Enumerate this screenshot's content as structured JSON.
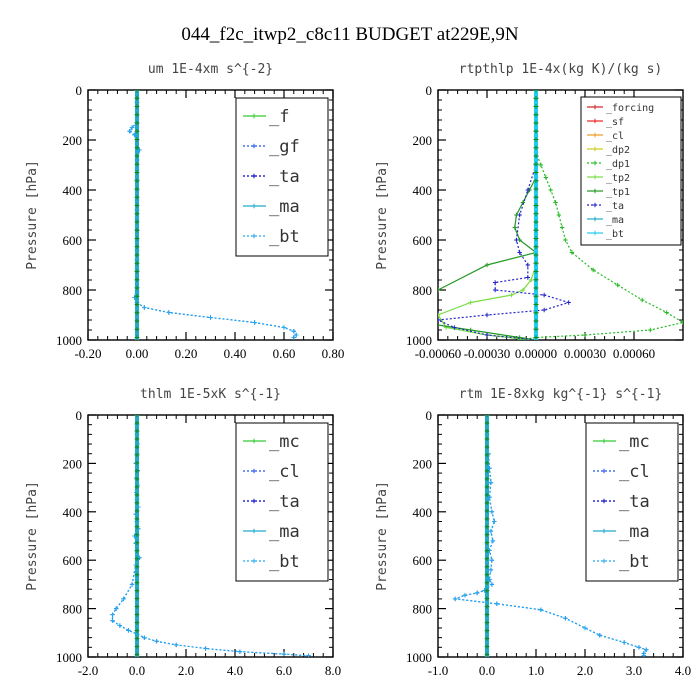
{
  "figure_title": "044_f2c_itwp2_c8c11  BUDGET at229E,9N",
  "chart_data": [
    {
      "type": "line",
      "title": "um   1E-4xm s^{-2}",
      "ylabel": "Pressure [hPa]",
      "xlim": [
        -0.2,
        0.8
      ],
      "ylim": [
        0,
        1000
      ],
      "y_inverted": true,
      "xticks": [
        -0.2,
        0.0,
        0.2,
        0.4,
        0.6,
        0.8
      ],
      "xtick_labels": [
        "-0.20",
        "0.00",
        "0.20",
        "0.40",
        "0.60",
        "0.80"
      ],
      "yticks": [
        0,
        200,
        400,
        600,
        800,
        1000
      ],
      "ytick_labels": [
        "0",
        "200",
        "400",
        "600",
        "800",
        "1000"
      ],
      "legend": {
        "position": "top-right",
        "style": "large",
        "entries": [
          "_f",
          "_gf",
          "_ta",
          "_ma",
          "_bt"
        ]
      },
      "series": [
        {
          "name": "_f",
          "color": "#33cc33",
          "dash": "",
          "x": [
            0,
            0
          ],
          "y": [
            0,
            1000
          ]
        },
        {
          "name": "_gf",
          "color": "#2255ee",
          "dash": "2,2",
          "x": [
            0.0,
            0.0,
            0.0,
            0.0,
            -0.02,
            -0.03,
            -0.01,
            0.0,
            0.01,
            0.0,
            0.0,
            0.0,
            0.0,
            0.0,
            0.0,
            0.0,
            0.0,
            0.0,
            0.0,
            0.0,
            0.0,
            0.0,
            0.0,
            0.0,
            0.0,
            -0.01,
            0.0,
            0.03,
            0.13,
            0.3,
            0.48,
            0.6,
            0.64,
            0.65,
            0.64
          ],
          "y": [
            0,
            50,
            100,
            130,
            150,
            165,
            180,
            200,
            240,
            280,
            320,
            360,
            400,
            440,
            480,
            520,
            560,
            600,
            640,
            680,
            720,
            760,
            790,
            805,
            815,
            830,
            850,
            870,
            890,
            910,
            930,
            950,
            965,
            980,
            990
          ]
        },
        {
          "name": "_ta",
          "color": "#0000cc",
          "dash": "2,2",
          "x": [
            0.0,
            0.0,
            0.0,
            0.0,
            0.0
          ],
          "y": [
            0,
            250,
            500,
            750,
            1000
          ]
        },
        {
          "name": "_ma",
          "color": "#22aacc",
          "dash": "",
          "x": [
            0.0,
            0.0
          ],
          "y": [
            0,
            1000
          ]
        },
        {
          "name": "_bt",
          "color": "#22aaee",
          "dash": "2,2",
          "x": [
            0.0,
            0.0,
            0.0,
            0.0,
            -0.02,
            -0.03,
            -0.01,
            0.0,
            0.01,
            0.0,
            0.0,
            0.0,
            0.0,
            0.0,
            0.0,
            0.0,
            0.0,
            0.0,
            0.0,
            0.0,
            0.0,
            0.0,
            0.0,
            0.0,
            0.0,
            -0.01,
            0.0,
            0.03,
            0.13,
            0.3,
            0.48,
            0.6,
            0.64,
            0.65,
            0.64
          ],
          "y": [
            0,
            50,
            100,
            130,
            150,
            165,
            180,
            200,
            240,
            280,
            320,
            360,
            400,
            440,
            480,
            520,
            560,
            600,
            640,
            680,
            720,
            760,
            790,
            805,
            815,
            830,
            850,
            870,
            890,
            910,
            930,
            950,
            965,
            980,
            990
          ]
        }
      ]
    },
    {
      "type": "line",
      "title": "rtpthlp   1E-4x(kg K)/(kg s)",
      "ylabel": "Pressure [hPa]",
      "xlim": [
        -0.0006,
        0.0009
      ],
      "ylim": [
        0,
        1000
      ],
      "y_inverted": true,
      "xticks": [
        -0.0006,
        -0.0003,
        0.0,
        0.0003,
        0.0006
      ],
      "xtick_labels": [
        "-0.00060",
        "-0.00030",
        "0.00000",
        "0.00030",
        "0.00060"
      ],
      "yticks": [
        0,
        200,
        400,
        600,
        800,
        1000
      ],
      "ytick_labels": [
        "0",
        "200",
        "400",
        "600",
        "800",
        "1000"
      ],
      "legend": {
        "position": "top-right",
        "style": "small",
        "entries": [
          "_forcing",
          "_sf",
          "_cl",
          "_dp2",
          "_dp1",
          "_tp2",
          "_tp1",
          "_ta",
          "_ma",
          "_bt"
        ]
      },
      "series": [
        {
          "name": "_forcing",
          "color": "#cc2222",
          "dash": "",
          "x": [
            0,
            0
          ],
          "y": [
            0,
            1000
          ]
        },
        {
          "name": "_sf",
          "color": "#ee2222",
          "dash": "",
          "x": [
            0,
            0
          ],
          "y": [
            0,
            1000
          ]
        },
        {
          "name": "_cl",
          "color": "#ee9922",
          "dash": "",
          "x": [
            0,
            0
          ],
          "y": [
            0,
            1000
          ]
        },
        {
          "name": "_dp2",
          "color": "#cccc22",
          "dash": "",
          "x": [
            0,
            0
          ],
          "y": [
            0,
            1000
          ]
        },
        {
          "name": "_dp1",
          "color": "#22bb22",
          "dash": "2,2",
          "x": [
            0.0,
            0.0,
            3e-05,
            6e-05,
            9e-05,
            0.00012,
            0.00014,
            0.00016,
            0.00018,
            0.00022,
            0.00035,
            0.0005,
            0.00065,
            0.0008,
            0.0009,
            0.0007,
            0.0003,
            0.0,
            -0.0001
          ],
          "y": [
            230,
            250,
            300,
            350,
            400,
            450,
            500,
            550,
            600,
            650,
            720,
            780,
            840,
            890,
            930,
            960,
            980,
            990,
            1000
          ]
        },
        {
          "name": "_tp2",
          "color": "#77dd44",
          "dash": "",
          "x": [
            0.0,
            -3e-05,
            -8e-05,
            -0.00015,
            -0.0004,
            -0.0006,
            -0.00055,
            -0.0003,
            -0.0001,
            0.0
          ],
          "y": [
            700,
            760,
            800,
            820,
            850,
            900,
            950,
            980,
            995,
            1000
          ]
        },
        {
          "name": "_tp1",
          "color": "#229922",
          "dash": "",
          "x": [
            0.0,
            0.0,
            -4e-05,
            -8e-05,
            -0.00012,
            -0.00013,
            -0.0001,
            0.0,
            -0.0003,
            -0.0006,
            -0.0008,
            -0.0007,
            -0.0004,
            -0.0001,
            0.0
          ],
          "y": [
            300,
            350,
            400,
            450,
            500,
            550,
            600,
            650,
            700,
            800,
            900,
            930,
            960,
            990,
            1000
          ]
        },
        {
          "name": "_ta",
          "color": "#2222cc",
          "dash": "2,2",
          "x": [
            0.0,
            -5e-05,
            -0.0001,
            -0.00012,
            -0.0001,
            -5e-05,
            -5e-05,
            -0.00025,
            -0.00025,
            5e-05,
            0.0002,
            5e-05,
            -0.0003,
            -0.0006,
            -0.0005,
            -0.0003,
            0.0
          ],
          "y": [
            300,
            400,
            500,
            600,
            650,
            700,
            750,
            770,
            800,
            820,
            850,
            880,
            900,
            920,
            950,
            980,
            1000
          ]
        },
        {
          "name": "_ma",
          "color": "#22aacc",
          "dash": "",
          "x": [
            0.0,
            0.0
          ],
          "y": [
            0,
            1000
          ]
        },
        {
          "name": "_bt",
          "color": "#22ccee",
          "dash": "",
          "x": [
            0.0,
            0.0
          ],
          "y": [
            0,
            1000
          ]
        }
      ]
    },
    {
      "type": "line",
      "title": "thlm   1E-5xK s^{-1}",
      "ylabel": "Pressure [hPa]",
      "xlim": [
        -2.0,
        8.0
      ],
      "ylim": [
        0,
        1000
      ],
      "y_inverted": true,
      "xticks": [
        -2.0,
        0.0,
        2.0,
        4.0,
        6.0,
        8.0
      ],
      "xtick_labels": [
        "-2.0",
        "0.0",
        "2.0",
        "4.0",
        "6.0",
        "8.0"
      ],
      "yticks": [
        0,
        200,
        400,
        600,
        800,
        1000
      ],
      "ytick_labels": [
        "0",
        "200",
        "400",
        "600",
        "800",
        "1000"
      ],
      "legend": {
        "position": "top-right",
        "style": "large",
        "entries": [
          "_mc",
          "_cl",
          "_ta",
          "_ma",
          "_bt"
        ]
      },
      "series": [
        {
          "name": "_mc",
          "color": "#33cc33",
          "dash": "",
          "x": [
            0,
            0
          ],
          "y": [
            0,
            1000
          ]
        },
        {
          "name": "_cl",
          "color": "#2255ee",
          "dash": "2,2",
          "x": [
            0.0,
            0.0,
            0.0,
            0.02,
            0.0,
            -0.05,
            0.03,
            -0.02,
            0.02,
            -0.03,
            0.0,
            0.05,
            -0.05,
            0.0,
            0.05,
            -0.1,
            -0.05,
            0.0,
            0.1,
            -0.05,
            -0.2,
            -0.55,
            -0.85,
            -1.0,
            -1.0,
            -0.7,
            -0.35,
            0.0,
            0.3,
            0.8,
            1.6,
            2.8,
            4.2,
            6.0,
            7.0
          ],
          "y": [
            0,
            40,
            80,
            120,
            160,
            200,
            230,
            260,
            290,
            320,
            350,
            380,
            410,
            440,
            470,
            500,
            530,
            560,
            590,
            620,
            700,
            760,
            800,
            825,
            850,
            870,
            890,
            905,
            920,
            935,
            950,
            965,
            978,
            988,
            995
          ]
        },
        {
          "name": "_ta",
          "color": "#0000cc",
          "dash": "2,2",
          "x": [
            0.0,
            0.0,
            0.0
          ],
          "y": [
            0,
            500,
            1000
          ]
        },
        {
          "name": "_ma",
          "color": "#22aacc",
          "dash": "",
          "x": [
            0.0,
            0.0
          ],
          "y": [
            0,
            1000
          ]
        },
        {
          "name": "_bt",
          "color": "#22aaee",
          "dash": "2,2",
          "x": [
            0.0,
            0.0,
            0.0,
            0.02,
            0.0,
            -0.05,
            0.03,
            -0.02,
            0.02,
            -0.03,
            0.0,
            0.05,
            -0.05,
            0.0,
            0.05,
            -0.1,
            -0.05,
            0.0,
            0.1,
            -0.05,
            -0.2,
            -0.55,
            -0.85,
            -1.0,
            -1.0,
            -0.7,
            -0.35,
            0.0,
            0.3,
            0.8,
            1.6,
            2.8,
            4.2,
            6.0,
            7.0
          ],
          "y": [
            0,
            40,
            80,
            120,
            160,
            200,
            230,
            260,
            290,
            320,
            350,
            380,
            410,
            440,
            470,
            500,
            530,
            560,
            590,
            620,
            700,
            760,
            800,
            825,
            850,
            870,
            890,
            905,
            920,
            935,
            950,
            965,
            978,
            988,
            995
          ]
        }
      ]
    },
    {
      "type": "line",
      "title": "rtm   1E-8xkg kg^{-1} s^{-1}",
      "ylabel": "Pressure [hPa]",
      "xlim": [
        -1.0,
        4.0
      ],
      "ylim": [
        0,
        1000
      ],
      "y_inverted": true,
      "xticks": [
        -1.0,
        0.0,
        1.0,
        2.0,
        3.0,
        4.0
      ],
      "xtick_labels": [
        "-1.0",
        "0.0",
        "1.0",
        "2.0",
        "3.0",
        "4.0"
      ],
      "yticks": [
        0,
        200,
        400,
        600,
        800,
        1000
      ],
      "ytick_labels": [
        "0",
        "200",
        "400",
        "600",
        "800",
        "1000"
      ],
      "legend": {
        "position": "top-right",
        "style": "large",
        "entries": [
          "_mc",
          "_cl",
          "_ta",
          "_ma",
          "_bt"
        ]
      },
      "series": [
        {
          "name": "_mc",
          "color": "#33cc33",
          "dash": "",
          "x": [
            0,
            0
          ],
          "y": [
            0,
            1000
          ]
        },
        {
          "name": "_cl",
          "color": "#2255ee",
          "dash": "2,2",
          "x": [
            0.0,
            0.0,
            0.03,
            0.05,
            0.08,
            0.05,
            0.1,
            0.15,
            0.08,
            0.12,
            0.05,
            0.1,
            0.08,
            0.05,
            0.1,
            0.0,
            -0.05,
            -0.2,
            -0.45,
            -0.65,
            0.2,
            1.1,
            1.6,
            2.0,
            2.3,
            2.8,
            3.1,
            3.25,
            3.2,
            3.2
          ],
          "y": [
            0,
            80,
            160,
            220,
            280,
            340,
            400,
            440,
            480,
            520,
            560,
            600,
            640,
            680,
            700,
            715,
            725,
            735,
            745,
            760,
            780,
            805,
            840,
            880,
            910,
            940,
            960,
            970,
            985,
            995
          ]
        },
        {
          "name": "_ta",
          "color": "#0000cc",
          "dash": "2,2",
          "x": [
            0.0,
            0.0,
            0.0
          ],
          "y": [
            0,
            500,
            1000
          ]
        },
        {
          "name": "_ma",
          "color": "#22aacc",
          "dash": "",
          "x": [
            0.0,
            0.0
          ],
          "y": [
            0,
            1000
          ]
        },
        {
          "name": "_bt",
          "color": "#22aaee",
          "dash": "2,2",
          "x": [
            0.0,
            0.0,
            0.03,
            0.05,
            0.08,
            0.05,
            0.1,
            0.15,
            0.08,
            0.12,
            0.05,
            0.1,
            0.08,
            0.05,
            0.1,
            0.0,
            -0.05,
            -0.2,
            -0.45,
            -0.65,
            0.2,
            1.1,
            1.6,
            2.0,
            2.3,
            2.8,
            3.1,
            3.25,
            3.2,
            3.2
          ],
          "y": [
            0,
            80,
            160,
            220,
            280,
            340,
            400,
            440,
            480,
            520,
            560,
            600,
            640,
            680,
            700,
            715,
            725,
            735,
            745,
            760,
            780,
            805,
            840,
            880,
            910,
            940,
            960,
            970,
            985,
            995
          ]
        }
      ]
    }
  ]
}
